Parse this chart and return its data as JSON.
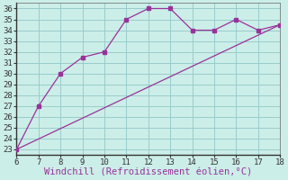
{
  "xlabel": "Windchill (Refroidissement éolien,°C)",
  "line1_x": [
    6,
    7,
    8,
    9,
    10,
    11,
    12,
    13,
    14,
    15,
    16,
    17,
    18
  ],
  "line1_y": [
    23,
    27,
    30,
    31.5,
    32,
    35,
    36,
    36,
    34,
    34,
    35,
    34,
    34.5
  ],
  "line2_x": [
    6,
    18
  ],
  "line2_y": [
    23,
    34.5
  ],
  "line_color": "#993399",
  "bg_color": "#cceee8",
  "grid_color": "#99cccc",
  "xlim": [
    6,
    18
  ],
  "ylim": [
    22.5,
    36.5
  ],
  "xticks": [
    6,
    7,
    8,
    9,
    10,
    11,
    12,
    13,
    14,
    15,
    16,
    17,
    18
  ],
  "yticks": [
    23,
    24,
    25,
    26,
    27,
    28,
    29,
    30,
    31,
    32,
    33,
    34,
    35,
    36
  ],
  "tick_fontsize": 6.5,
  "xlabel_fontsize": 7.5
}
